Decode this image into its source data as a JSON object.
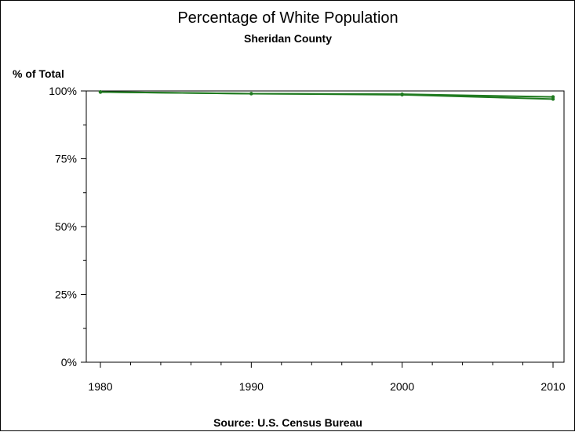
{
  "chart_data": {
    "type": "line",
    "title": "Percentage of White Population",
    "subtitle": "Sheridan County",
    "ylabel": "% of Total",
    "xlabel": "",
    "footnote": "Source: U.S. Census Bureau",
    "xlim": [
      1980,
      2010
    ],
    "ylim": [
      0,
      100
    ],
    "x_ticks": [
      1980,
      1990,
      2000,
      2010
    ],
    "x_tick_labels": [
      "1980",
      "1990",
      "2000",
      "2010"
    ],
    "y_ticks": [
      0,
      25,
      50,
      75,
      100
    ],
    "y_tick_labels": [
      "0%",
      "25%",
      "50%",
      "75%",
      "100%"
    ],
    "grid": false,
    "series": [
      {
        "x": [
          1980,
          1990,
          2000,
          2010
        ],
        "values": [
          99.6,
          99.0,
          98.6,
          97.0
        ]
      },
      {
        "x": [
          1980,
          1990,
          2000,
          2010
        ],
        "values": [
          99.6,
          99.0,
          98.8,
          97.8
        ]
      }
    ],
    "colors": {
      "line": "#1f7a1f",
      "axis": "#000000"
    }
  }
}
